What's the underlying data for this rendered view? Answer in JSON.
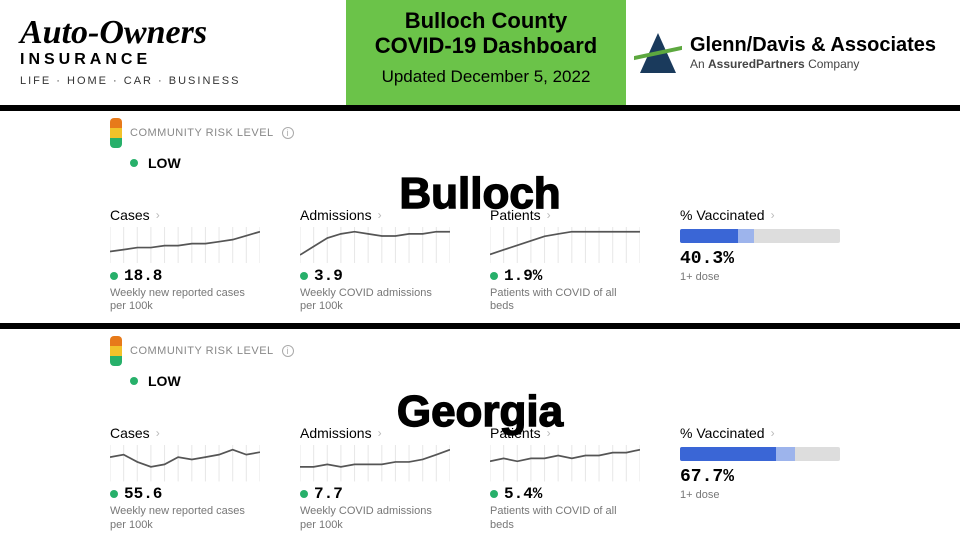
{
  "header": {
    "left_sponsor": {
      "name": "Auto-Owners",
      "sub": "INSURANCE",
      "tag": "LIFE · HOME · CAR · BUSINESS"
    },
    "title": {
      "line1": "Bulloch County",
      "line2": "COVID-19 Dashboard",
      "updated": "Updated December 5, 2022"
    },
    "right_sponsor": {
      "name": "Glenn/Davis & Associates",
      "sub_prefix": "An ",
      "sub_bold": "AssuredPartners",
      "sub_suffix": " Company"
    }
  },
  "risk_label": "COMMUNITY RISK LEVEL",
  "regions": [
    {
      "name": "Bulloch",
      "risk": "LOW",
      "metrics": [
        {
          "label": "Cases",
          "value": "18.8",
          "desc": "Weekly new reported cases per 100k",
          "spark": [
            6,
            7,
            8,
            8,
            9,
            9,
            10,
            10,
            11,
            12,
            14,
            16
          ]
        },
        {
          "label": "Admissions",
          "value": "3.9",
          "desc": "Weekly COVID admissions per 100k",
          "spark": [
            4,
            8,
            12,
            14,
            15,
            14,
            13,
            13,
            14,
            14,
            15,
            15
          ]
        },
        {
          "label": "Patients",
          "value": "1.9%",
          "desc": "Patients with COVID of all beds",
          "spark": [
            4,
            6,
            8,
            10,
            12,
            13,
            14,
            14,
            14,
            14,
            14,
            14
          ]
        }
      ],
      "vax": {
        "label": "% Vaccinated",
        "value": "40.3%",
        "desc": "1+ dose",
        "seg1": 0.36,
        "seg2": 0.1
      }
    },
    {
      "name": "Georgia",
      "risk": "LOW",
      "metrics": [
        {
          "label": "Cases",
          "value": "55.6",
          "desc": "Weekly new reported cases per 100k",
          "spark": [
            10,
            11,
            8,
            6,
            7,
            10,
            9,
            10,
            11,
            13,
            11,
            12
          ]
        },
        {
          "label": "Admissions",
          "value": "7.7",
          "desc": "Weekly COVID admissions per 100k",
          "spark": [
            6,
            6,
            7,
            6,
            7,
            7,
            7,
            8,
            8,
            9,
            11,
            13
          ]
        },
        {
          "label": "Patients",
          "value": "5.4%",
          "desc": "Patients with COVID of all beds",
          "spark": [
            7,
            8,
            7,
            8,
            8,
            9,
            8,
            9,
            9,
            10,
            10,
            11
          ]
        }
      ],
      "vax": {
        "label": "% Vaccinated",
        "value": "67.7%",
        "desc": "1+ dose",
        "seg1": 0.6,
        "seg2": 0.12
      }
    }
  ],
  "colors": {
    "grid": "#e8e8e8",
    "line": "#555",
    "green": "#27b06a"
  }
}
